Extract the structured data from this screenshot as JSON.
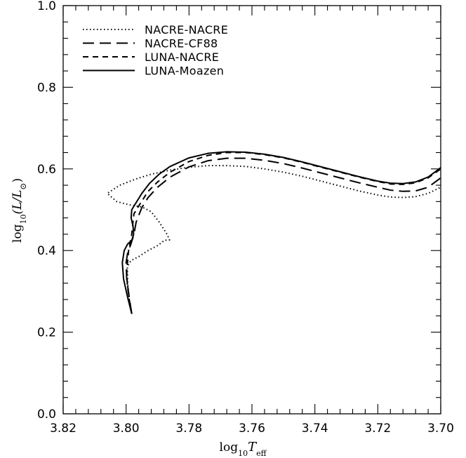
{
  "chart_data": {
    "type": "line",
    "title": "",
    "xlabel_main": "log",
    "xlabel_sub": "10",
    "xlabel_var": "T",
    "xlabel_var_sub": "eff",
    "ylabel_main": "log",
    "ylabel_sub": "10",
    "ylabel_rest": "(L/L",
    "ylabel_sun": "⊙",
    "ylabel_close": ")",
    "xlim": [
      3.82,
      3.7
    ],
    "ylim": [
      0.0,
      1.0
    ],
    "x_ticks": [
      3.82,
      3.8,
      3.78,
      3.76,
      3.74,
      3.72,
      3.7
    ],
    "x_tick_labels": [
      "3.82",
      "3.80",
      "3.78",
      "3.76",
      "3.74",
      "3.72",
      "3.70"
    ],
    "x_minor_step": 0.004,
    "y_ticks": [
      0.0,
      0.2,
      0.4,
      0.6,
      0.8,
      1.0
    ],
    "y_tick_labels": [
      "0.0",
      "0.2",
      "0.4",
      "0.6",
      "0.8",
      "1.0"
    ],
    "y_minor_step": 0.04,
    "grid": false,
    "legend_position": "top-left",
    "series": [
      {
        "name": "NACRE-NACRE",
        "style": "dotted",
        "x": [
          3.7982,
          3.799,
          3.7995,
          3.7996,
          3.7985,
          3.796,
          3.793,
          3.79,
          3.7878,
          3.7862,
          3.787,
          3.7895,
          3.792,
          3.795,
          3.799,
          3.803,
          3.806,
          3.802,
          3.797,
          3.792,
          3.786,
          3.78,
          3.774,
          3.768,
          3.762,
          3.756,
          3.75,
          3.744,
          3.738,
          3.732,
          3.726,
          3.72,
          3.716,
          3.712,
          3.708,
          3.704,
          3.7
        ],
        "y": [
          0.245,
          0.28,
          0.32,
          0.36,
          0.375,
          0.385,
          0.4,
          0.412,
          0.425,
          0.426,
          0.44,
          0.47,
          0.495,
          0.507,
          0.512,
          0.52,
          0.54,
          0.56,
          0.575,
          0.587,
          0.597,
          0.604,
          0.608,
          0.608,
          0.606,
          0.6,
          0.592,
          0.582,
          0.57,
          0.558,
          0.546,
          0.536,
          0.531,
          0.53,
          0.532,
          0.54,
          0.555
        ]
      },
      {
        "name": "NACRE-CF88",
        "style": "long-dashed",
        "x": [
          3.7982,
          3.799,
          3.7998,
          3.8,
          3.7995,
          3.7985,
          3.7975,
          3.7968,
          3.795,
          3.793,
          3.79,
          3.786,
          3.78,
          3.774,
          3.768,
          3.762,
          3.756,
          3.75,
          3.744,
          3.738,
          3.732,
          3.726,
          3.72,
          3.716,
          3.712,
          3.708,
          3.704,
          3.7
        ],
        "y": [
          0.245,
          0.285,
          0.33,
          0.37,
          0.395,
          0.415,
          0.44,
          0.47,
          0.505,
          0.53,
          0.555,
          0.58,
          0.605,
          0.62,
          0.626,
          0.626,
          0.621,
          0.613,
          0.602,
          0.59,
          0.578,
          0.566,
          0.555,
          0.548,
          0.545,
          0.546,
          0.555,
          0.578
        ]
      },
      {
        "name": "LUNA-NACRE",
        "style": "dashed",
        "x": [
          3.7982,
          3.799,
          3.7996,
          3.7998,
          3.7992,
          3.7982,
          3.7978,
          3.7975,
          3.7955,
          3.793,
          3.79,
          3.786,
          3.78,
          3.774,
          3.768,
          3.762,
          3.756,
          3.75,
          3.744,
          3.738,
          3.732,
          3.726,
          3.72,
          3.716,
          3.712,
          3.708,
          3.704,
          3.7
        ],
        "y": [
          0.245,
          0.28,
          0.315,
          0.35,
          0.4,
          0.44,
          0.47,
          0.49,
          0.515,
          0.545,
          0.568,
          0.592,
          0.618,
          0.633,
          0.64,
          0.64,
          0.635,
          0.627,
          0.616,
          0.604,
          0.592,
          0.58,
          0.569,
          0.563,
          0.562,
          0.566,
          0.578,
          0.6
        ]
      },
      {
        "name": "LUNA-Moazen",
        "style": "solid",
        "x": [
          3.7982,
          3.7995,
          3.8008,
          3.8012,
          3.8006,
          3.7995,
          3.7982,
          3.7976,
          3.7978,
          3.7984,
          3.7982,
          3.797,
          3.795,
          3.7925,
          3.7895,
          3.786,
          3.78,
          3.774,
          3.768,
          3.762,
          3.756,
          3.75,
          3.744,
          3.738,
          3.732,
          3.726,
          3.72,
          3.716,
          3.712,
          3.708,
          3.704,
          3.7
        ],
        "y": [
          0.245,
          0.285,
          0.33,
          0.37,
          0.4,
          0.416,
          0.425,
          0.44,
          0.46,
          0.48,
          0.5,
          0.515,
          0.54,
          0.565,
          0.587,
          0.606,
          0.627,
          0.638,
          0.642,
          0.641,
          0.636,
          0.628,
          0.617,
          0.605,
          0.593,
          0.581,
          0.57,
          0.565,
          0.564,
          0.568,
          0.58,
          0.603
        ]
      }
    ]
  }
}
